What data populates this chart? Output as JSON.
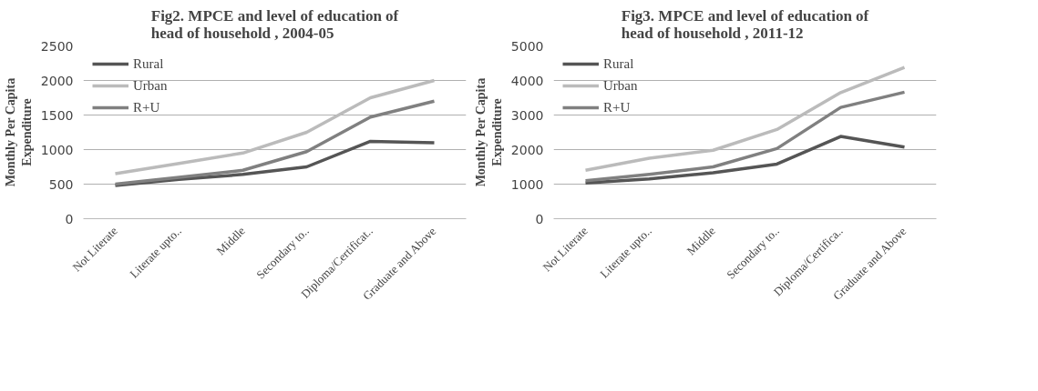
{
  "chart_data": [
    {
      "type": "line",
      "title": "Fig2. MPCE and level of education of\nhead of household , 2004-05",
      "ylabel": "Monthly Per Capita\nExpenditure",
      "categories": [
        "Not Literate",
        "Literate upto..",
        "Middle",
        "Secondary to..",
        "Diploma/Certificat..",
        "Graduate and Above"
      ],
      "ylim": [
        0,
        2500
      ],
      "yticks": [
        0,
        500,
        1000,
        1500,
        2000,
        2500
      ],
      "grid": "y",
      "legend": "top left",
      "series": [
        {
          "name": "Rural",
          "color": "#555555",
          "values": [
            480,
            570,
            640,
            750,
            1120,
            1100
          ]
        },
        {
          "name": "Urban",
          "color": "#bbbbbb",
          "values": [
            650,
            800,
            950,
            1250,
            1750,
            2000
          ]
        },
        {
          "name": "R+U",
          "color": "#808080",
          "values": [
            500,
            600,
            700,
            970,
            1470,
            1700
          ]
        }
      ]
    },
    {
      "type": "line",
      "title": "Fig3. MPCE and level of education of\nhead of household , 2011-12",
      "ylabel": "Monthly Per Capita\nExpenditure",
      "categories": [
        "Not Literate",
        "Literate upto..",
        "Middle",
        "Secondary to..",
        "Diploma/Certifica..",
        "Graduate and Above"
      ],
      "ylim": [
        0,
        5000
      ],
      "yticks": [
        0,
        1000,
        2000,
        3000,
        4000,
        5000
      ],
      "grid": "y",
      "legend": "top left",
      "series": [
        {
          "name": "Rural",
          "color": "#555555",
          "values": [
            1030,
            1150,
            1330,
            1580,
            2380,
            2070
          ]
        },
        {
          "name": "Urban",
          "color": "#bbbbbb",
          "values": [
            1400,
            1750,
            1980,
            2580,
            3650,
            4380
          ]
        },
        {
          "name": "R+U",
          "color": "#808080",
          "values": [
            1100,
            1280,
            1500,
            2030,
            3220,
            3660
          ]
        }
      ]
    }
  ]
}
